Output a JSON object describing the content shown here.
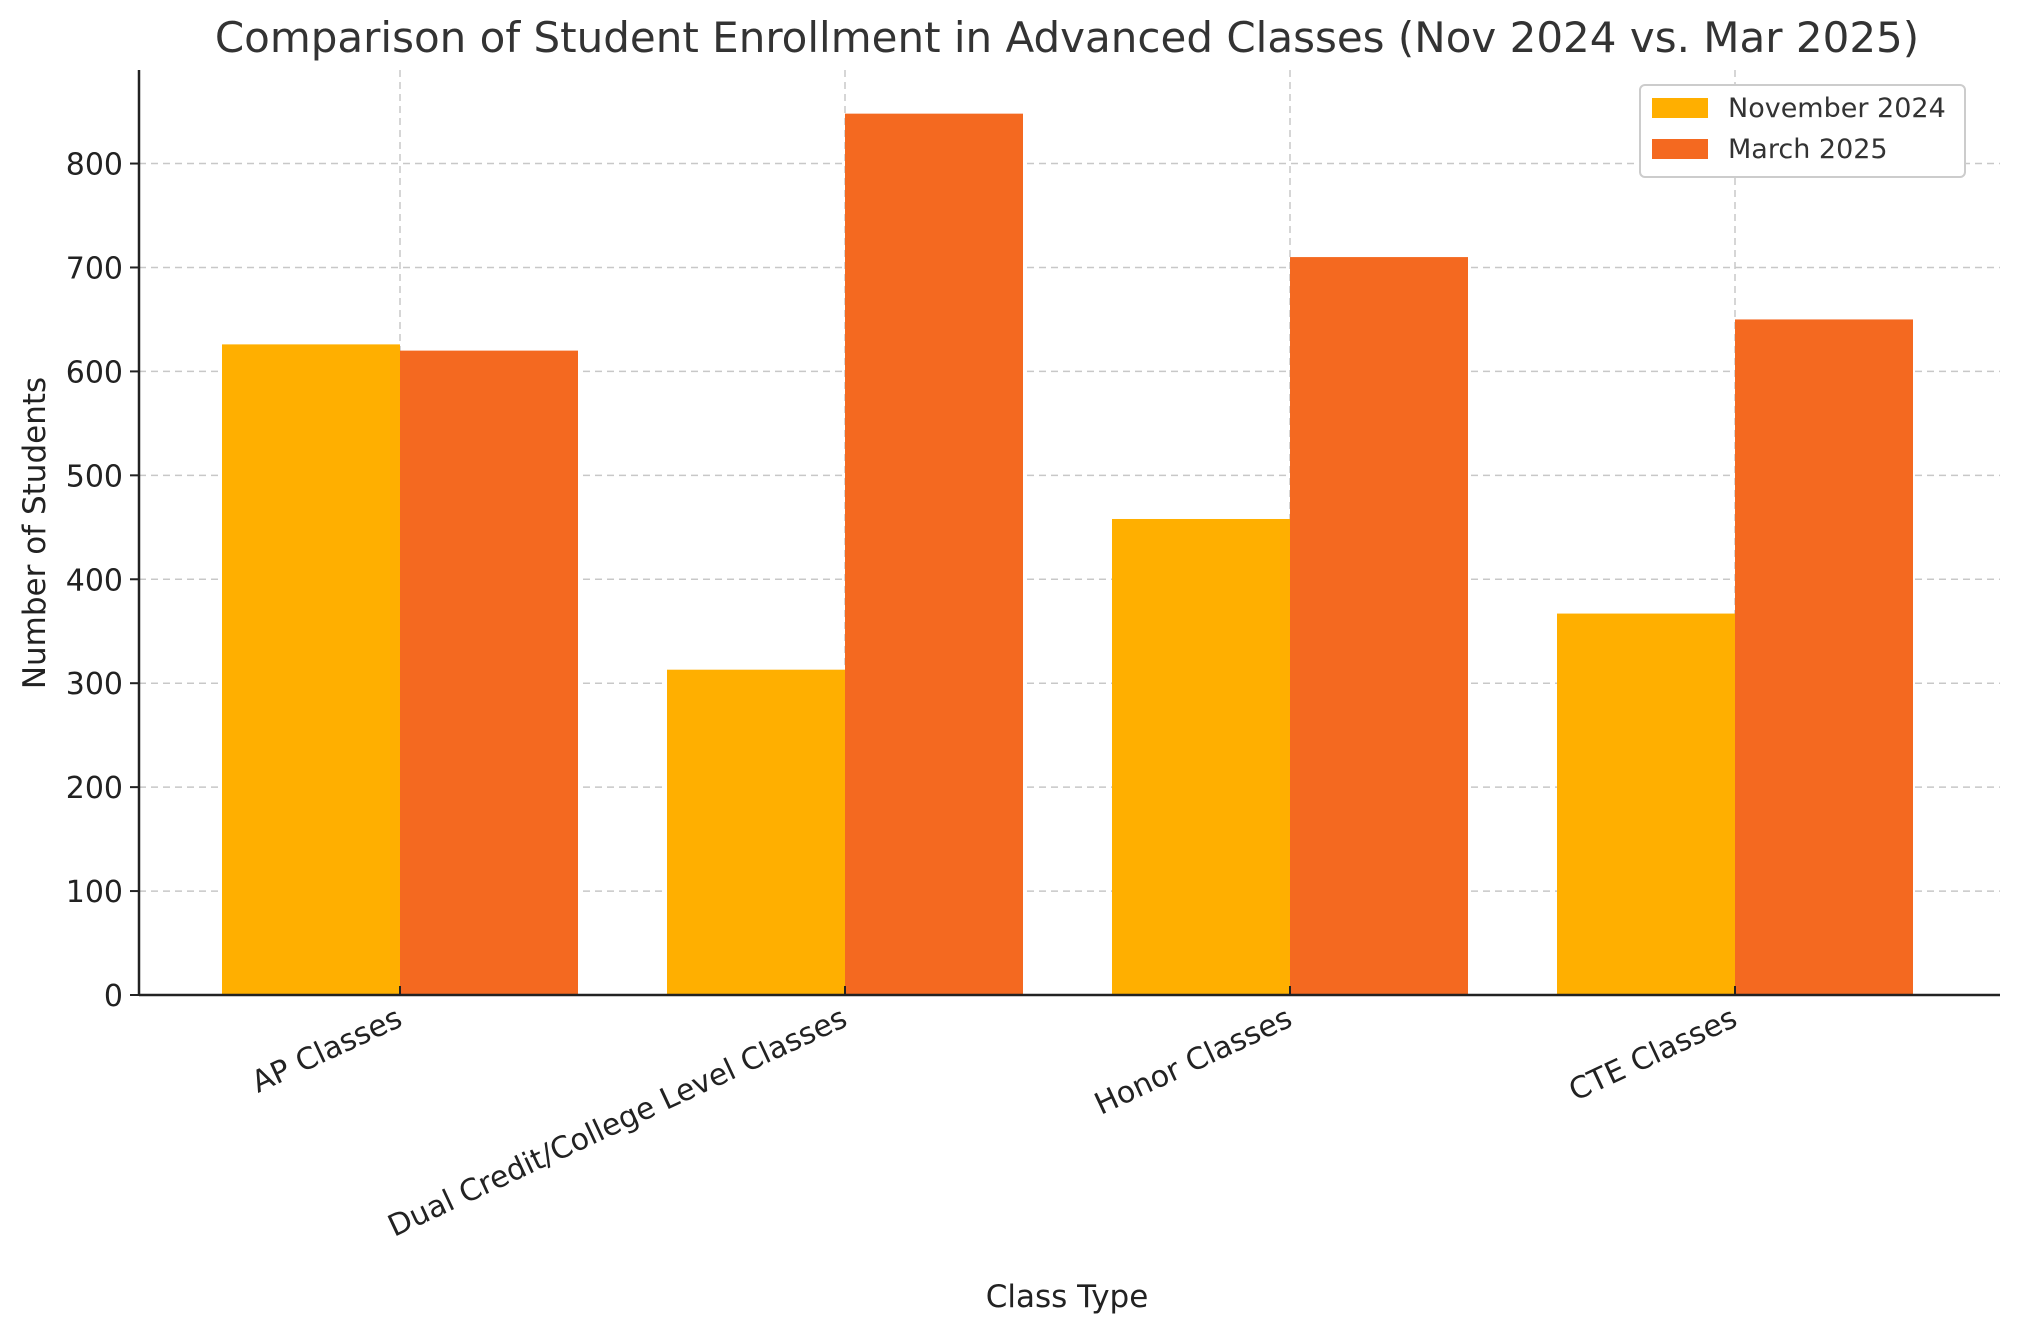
{
  "chart_data": {
    "type": "bar",
    "title": "Comparison of Student Enrollment in Advanced Classes (Nov 2024 vs. Mar 2025)",
    "xlabel": "Class Type",
    "ylabel": "Number of Students",
    "categories": [
      "AP Classes",
      "Dual Credit/College Level Classes",
      "Honor Classes",
      "CTE Classes"
    ],
    "series": [
      {
        "name": "November 2024",
        "color": "#FFAF00",
        "values": [
          626,
          313,
          458,
          367
        ]
      },
      {
        "name": "March 2025",
        "color": "#F46920",
        "values": [
          620,
          848,
          710,
          650
        ]
      }
    ],
    "ylim": [
      0,
      890
    ],
    "yticks": [
      0,
      100,
      200,
      300,
      400,
      500,
      600,
      700,
      800
    ],
    "grid": true,
    "legend": "top-right"
  }
}
